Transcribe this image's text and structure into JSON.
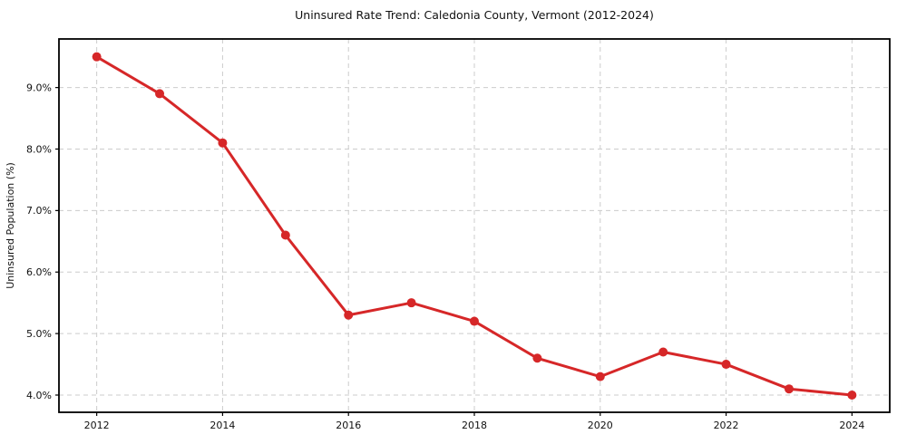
{
  "title": "Uninsured Rate Trend: Caledonia County, Vermont (2012-2024)",
  "chart_data": {
    "type": "line",
    "title": "Uninsured Rate Trend: Caledonia County, Vermont (2012-2024)",
    "xlabel": "",
    "ylabel": "Uninsured Population (%)",
    "x": [
      2012,
      2013,
      2014,
      2015,
      2016,
      2017,
      2018,
      2019,
      2020,
      2021,
      2022,
      2023,
      2024
    ],
    "values": [
      9.5,
      8.9,
      8.1,
      6.6,
      5.3,
      5.5,
      5.2,
      4.6,
      4.3,
      4.7,
      4.5,
      4.1,
      4.0
    ],
    "x_ticks": [
      2012,
      2014,
      2016,
      2018,
      2020,
      2022,
      2024
    ],
    "x_tick_labels": [
      "2012",
      "2014",
      "2016",
      "2018",
      "2020",
      "2022",
      "2024"
    ],
    "y_ticks": [
      4,
      5,
      6,
      7,
      8,
      9
    ],
    "y_tick_labels": [
      "4.0%",
      "5.0%",
      "6.0%",
      "7.0%",
      "8.0%",
      "9.0%"
    ],
    "xlim": [
      2011.4,
      2024.6
    ],
    "ylim": [
      3.72,
      9.79
    ],
    "grid": true,
    "grid_style": "dashed",
    "legend": false,
    "marker": "circle",
    "line_color": "#d62728",
    "marker_color": "#d62728",
    "grid_color": "#cccccc",
    "axis_color": "#000000",
    "text_color": "#111111",
    "background_color": "#ffffff"
  }
}
